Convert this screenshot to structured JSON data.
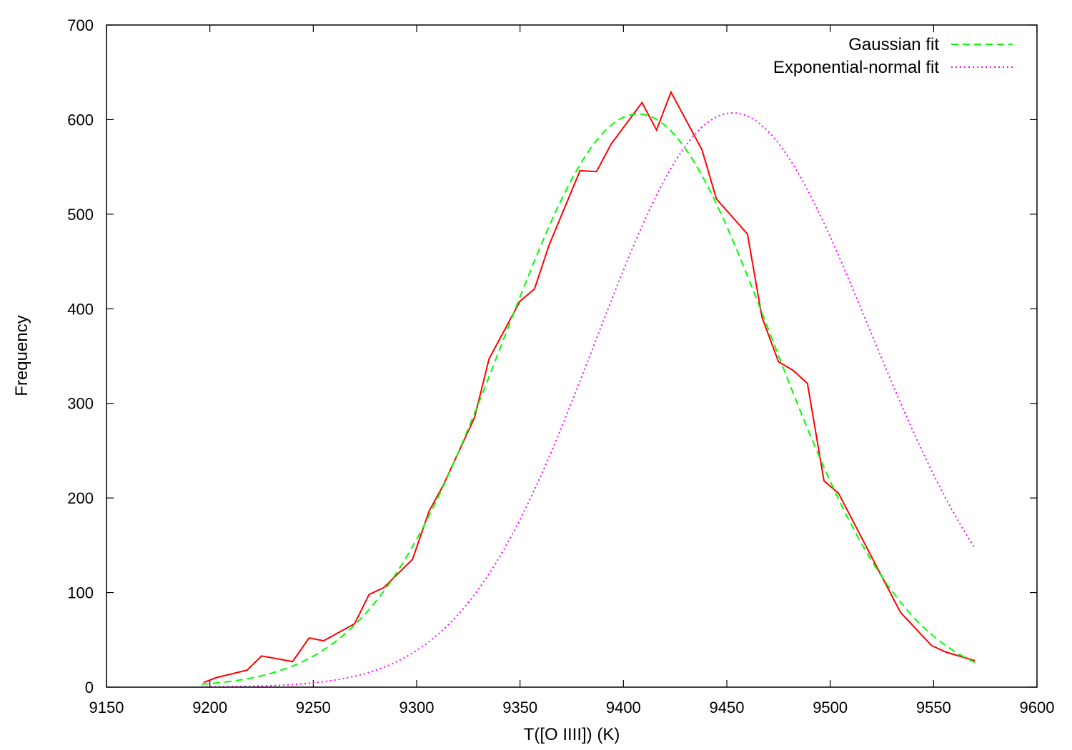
{
  "chart_data": {
    "type": "line",
    "title": "",
    "xlabel": "T([O IIII]) (K)",
    "ylabel": "Frequency",
    "xlim": [
      9150,
      9600
    ],
    "ylim": [
      0,
      700
    ],
    "xticks": [
      9150,
      9200,
      9250,
      9300,
      9350,
      9400,
      9450,
      9500,
      9550,
      9600
    ],
    "yticks": [
      0,
      100,
      200,
      300,
      400,
      500,
      600,
      700
    ],
    "grid": false,
    "legend_position": "top-right",
    "series": [
      {
        "name": "",
        "style": "solid",
        "color": "#ff0000",
        "x": [
          9197,
          9203,
          9218,
          9225,
          9240,
          9248,
          9255,
          9270,
          9277,
          9284,
          9298,
          9306,
          9313,
          9328,
          9335,
          9350,
          9357,
          9364,
          9379,
          9387,
          9394,
          9409,
          9416,
          9423,
          9438,
          9445,
          9460,
          9467,
          9475,
          9482,
          9489,
          9497,
          9504,
          9519,
          9534,
          9549,
          9556,
          9570
        ],
        "y": [
          5,
          10,
          18,
          33,
          27,
          52,
          49,
          67,
          98,
          105,
          135,
          186,
          214,
          285,
          347,
          408,
          421,
          467,
          546,
          545,
          574,
          618,
          589,
          629,
          568,
          516,
          479,
          391,
          344,
          335,
          321,
          218,
          205,
          142,
          79,
          44,
          37,
          28
        ]
      },
      {
        "name": "Gaussian fit",
        "style": "dashed",
        "color": "#00ff00",
        "model": "gaussian",
        "amplitude": 606,
        "mean": 9407,
        "sigma": 65
      },
      {
        "name": "Exponential-normal fit",
        "style": "dotted",
        "color": "#ff00ff",
        "model": "exponentially-modified-gaussian",
        "peak": 607,
        "mu": 9427,
        "sigma": 62,
        "skew_scale": 30
      }
    ],
    "x_range_fits": [
      9196,
      9570
    ]
  }
}
